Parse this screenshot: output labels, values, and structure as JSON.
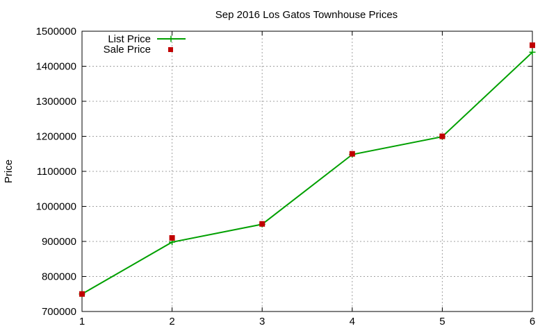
{
  "chart_data": {
    "type": "line",
    "title": "Sep 2016 Los Gatos Townhouse Prices",
    "xlabel": "",
    "ylabel": "Price",
    "x": [
      1,
      2,
      3,
      4,
      5,
      6
    ],
    "xlim": [
      1,
      6
    ],
    "ylim": [
      700000,
      1500000
    ],
    "xticks": [
      "1",
      "2",
      "3",
      "4",
      "5",
      "6"
    ],
    "yticks": [
      "700000",
      "800000",
      "900000",
      "1000000",
      "1100000",
      "1200000",
      "1300000",
      "1400000",
      "1500000"
    ],
    "grid": true,
    "legend_position": "top-left",
    "series": [
      {
        "name": "List Price",
        "style": "line with plus markers",
        "color": "#00a000",
        "values": [
          750000,
          898000,
          949000,
          1148000,
          1199000,
          1440000
        ]
      },
      {
        "name": "Sale Price",
        "style": "square markers",
        "color": "#c00000",
        "values": [
          750000,
          910000,
          950000,
          1150000,
          1200000,
          1460000
        ]
      }
    ]
  }
}
